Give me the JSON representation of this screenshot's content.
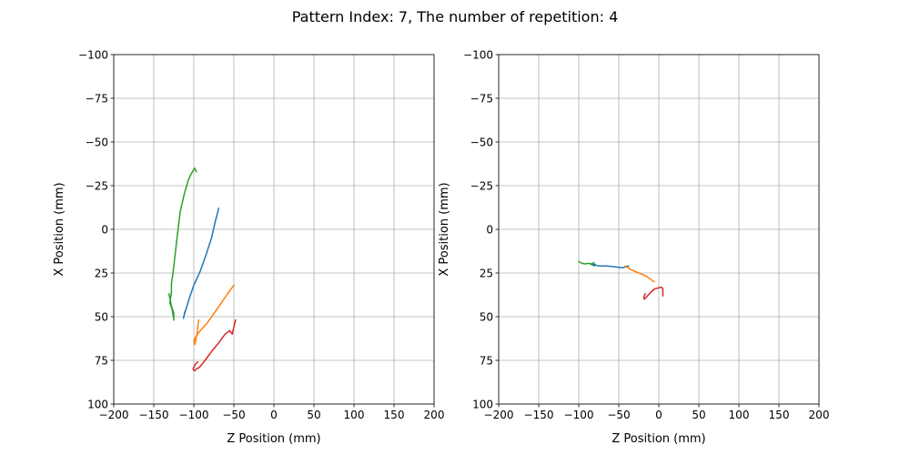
{
  "figure": {
    "suptitle": "Pattern Index: 7, The number of repetition: 4"
  },
  "chart_data": [
    {
      "type": "line",
      "xlabel": "Z Position (mm)",
      "ylabel": "X Position (mm)",
      "xlim": [
        -200,
        200
      ],
      "ylim": [
        100,
        -100
      ],
      "y_inverted": true,
      "xticks": [
        -200,
        -150,
        -100,
        -50,
        0,
        50,
        100,
        150,
        200
      ],
      "yticks": [
        -100,
        -75,
        -50,
        -25,
        0,
        25,
        50,
        75,
        100
      ],
      "grid": true,
      "series": [
        {
          "color": "#1f77b4",
          "x": [
            -69,
            -73,
            -78,
            -85,
            -92,
            -100,
            -106,
            -110,
            -112,
            -113,
            -111
          ],
          "y": [
            -12,
            -5,
            5,
            15,
            24,
            32,
            40,
            46,
            49,
            51,
            47
          ]
        },
        {
          "color": "#ff7f0e",
          "x": [
            -50,
            -58,
            -67,
            -76,
            -84,
            -92,
            -97,
            -100,
            -99,
            -96,
            -94
          ],
          "y": [
            32,
            37,
            43,
            49,
            54,
            58,
            61,
            64,
            66,
            60,
            52
          ]
        },
        {
          "color": "#2ca02c",
          "x": [
            -97,
            -99,
            -103,
            -107,
            -112,
            -117,
            -121,
            -124,
            -126,
            -128,
            -128,
            -130,
            -127,
            -126,
            -125,
            -125,
            -125,
            -125,
            -128,
            -131
          ],
          "y": [
            -33,
            -35,
            -32,
            -28,
            -20,
            -10,
            5,
            17,
            25,
            31,
            36,
            42,
            46,
            49,
            51,
            52,
            51,
            48,
            44,
            37
          ]
        },
        {
          "color": "#d62728",
          "x": [
            -48,
            -50,
            -52,
            -55,
            -61,
            -69,
            -78,
            -86,
            -93,
            -97,
            -99,
            -101,
            -100,
            -99,
            -98,
            -95
          ],
          "y": [
            52,
            56,
            60,
            58,
            60,
            65,
            70,
            75,
            79,
            80,
            81,
            80,
            79,
            78,
            77,
            76
          ]
        }
      ]
    },
    {
      "type": "line",
      "xlabel": "Z Position (mm)",
      "ylabel": "X Position (mm)",
      "xlim": [
        -200,
        200
      ],
      "ylim": [
        100,
        -100
      ],
      "y_inverted": true,
      "xticks": [
        -200,
        -150,
        -100,
        -50,
        0,
        50,
        100,
        150,
        200
      ],
      "yticks": [
        -100,
        -75,
        -50,
        -25,
        0,
        25,
        50,
        75,
        100
      ],
      "grid": true,
      "series": [
        {
          "color": "#1f77b4",
          "x": [
            -38,
            -45,
            -55,
            -65,
            -75,
            -82,
            -81,
            -80
          ],
          "y": [
            21,
            22,
            21.5,
            21,
            21,
            20,
            21,
            20
          ]
        },
        {
          "color": "#ff7f0e",
          "x": [
            -6,
            -15,
            -25,
            -35,
            -42,
            -38
          ],
          "y": [
            30,
            27,
            25,
            23,
            21,
            22
          ]
        },
        {
          "color": "#2ca02c",
          "x": [
            -100,
            -96,
            -92,
            -88,
            -84,
            -81,
            -85,
            -82
          ],
          "y": [
            18.5,
            19.5,
            19.8,
            19.5,
            19.8,
            19,
            20,
            20.5
          ]
        },
        {
          "color": "#d62728",
          "x": [
            5,
            5,
            3,
            0,
            -5,
            -10,
            -14,
            -18,
            -19,
            -17
          ],
          "y": [
            38,
            34,
            33,
            33.5,
            34,
            36,
            38,
            40,
            39,
            37
          ]
        }
      ]
    }
  ]
}
